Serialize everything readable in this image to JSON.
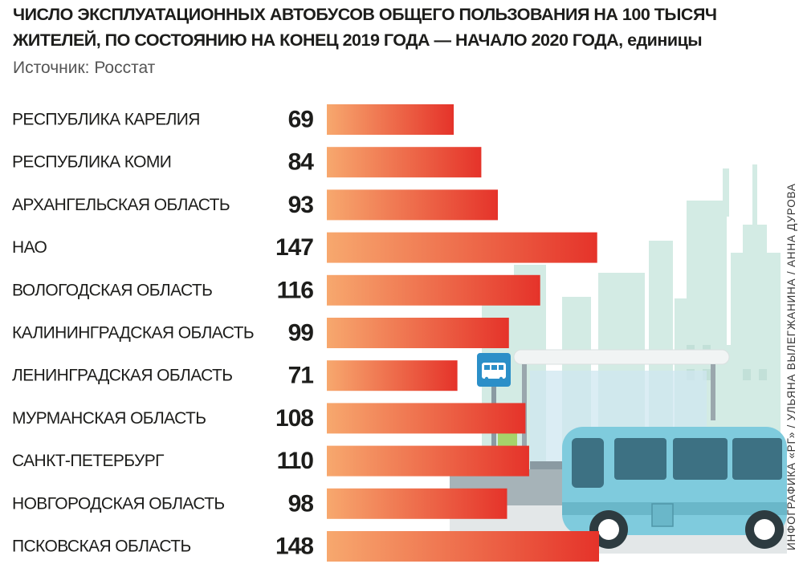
{
  "title": {
    "line1": "ЧИСЛО ЭКСПЛУАТАЦИОННЫХ АВТОБУСОВ ОБЩЕГО ПОЛЬЗОВАНИЯ НА 100 ТЫСЯЧ",
    "line2": "ЖИТЕЛЕЙ, ПО СОСТОЯНИЮ НА КОНЕЦ 2019 ГОДА — НАЧАЛО 2020 ГОДА,",
    "unit": "единицы"
  },
  "source": "Источник: Росстат",
  "credit": "ИНФОГРАФИКА «РГ» / УЛЬЯНА ВЫЛЕГЖАНИНА / АННА ДУРОВА",
  "colors": {
    "bar_start": "#f7a86e",
    "bar_end": "#e5332a",
    "label": "#1d1d1b",
    "city": "#d3ebe4",
    "bus": "#7fcbdd",
    "bus_window": "#3d7183",
    "sign": "#2b8fc8"
  },
  "icons": [
    "bus-stop-sign-icon",
    "bus-icon",
    "city-skyline-illustration",
    "bus-shelter-illustration"
  ],
  "chart_data": {
    "type": "bar",
    "orientation": "horizontal",
    "categories": [
      "РЕСПУБЛИКА КАРЕЛИЯ",
      "РЕСПУБЛИКА КОМИ",
      "АРХАНГЕЛЬСКАЯ ОБЛАСТЬ",
      "НАО",
      "ВОЛОГОДСКАЯ ОБЛАСТЬ",
      "КАЛИНИНГРАДСКАЯ ОБЛАСТЬ",
      "ЛЕНИНГРАДСКАЯ ОБЛАСТЬ",
      "МУРМАНСКАЯ ОБЛАСТЬ",
      "САНКТ-ПЕТЕРБУРГ",
      "НОВГОРОДСКАЯ ОБЛАСТЬ",
      "ПСКОВСКАЯ ОБЛАСТЬ"
    ],
    "values": [
      69,
      84,
      93,
      147,
      116,
      99,
      71,
      108,
      110,
      98,
      148
    ],
    "xlim": [
      0,
      148
    ],
    "grid": false,
    "legend": "none"
  }
}
